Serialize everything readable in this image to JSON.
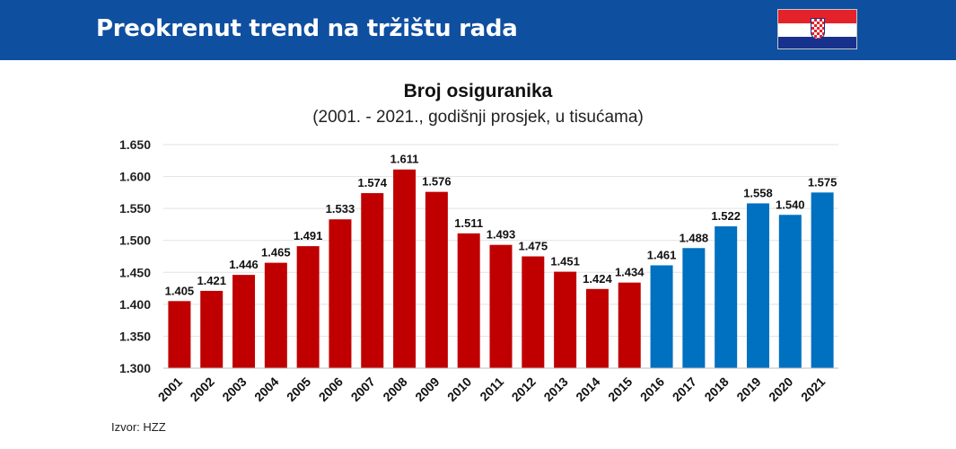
{
  "header": {
    "title": "Preokrenut trend na tržištu rada",
    "flag_icon": "croatian-flag-icon"
  },
  "chart_data": {
    "type": "bar",
    "title": "Broj osiguranika",
    "subtitle": "(2001. - 2021., godišnji prosjek, u tisućama)",
    "categories": [
      "2001",
      "2002",
      "2003",
      "2004",
      "2005",
      "2006",
      "2007",
      "2008",
      "2009",
      "2010",
      "2011",
      "2012",
      "2013",
      "2014",
      "2015",
      "2016",
      "2017",
      "2018",
      "2019",
      "2020",
      "2021"
    ],
    "values": [
      1405,
      1421,
      1446,
      1465,
      1491,
      1533,
      1574,
      1611,
      1576,
      1511,
      1493,
      1475,
      1451,
      1424,
      1434,
      1461,
      1488,
      1522,
      1558,
      1540,
      1575
    ],
    "value_labels": [
      "1.405",
      "1.421",
      "1.446",
      "1.465",
      "1.491",
      "1.533",
      "1.574",
      "1.611",
      "1.576",
      "1.511",
      "1.493",
      "1.475",
      "1.451",
      "1.424",
      "1.434",
      "1.461",
      "1.488",
      "1.522",
      "1.558",
      "1.540",
      "1.575"
    ],
    "bar_colors": [
      "#c00000",
      "#c00000",
      "#c00000",
      "#c00000",
      "#c00000",
      "#c00000",
      "#c00000",
      "#c00000",
      "#c00000",
      "#c00000",
      "#c00000",
      "#c00000",
      "#c00000",
      "#c00000",
      "#c00000",
      "#0070c0",
      "#0070c0",
      "#0070c0",
      "#0070c0",
      "#0070c0",
      "#0070c0"
    ],
    "y_ticks": [
      1300,
      1350,
      1400,
      1450,
      1500,
      1550,
      1600,
      1650
    ],
    "y_tick_labels": [
      "1.300",
      "1.350",
      "1.400",
      "1.450",
      "1.500",
      "1.550",
      "1.600",
      "1.650"
    ],
    "ylim": [
      1300,
      1650
    ],
    "grid": true,
    "legend": "none",
    "xlabel": "",
    "ylabel": ""
  },
  "source": "Izvor: HZZ"
}
